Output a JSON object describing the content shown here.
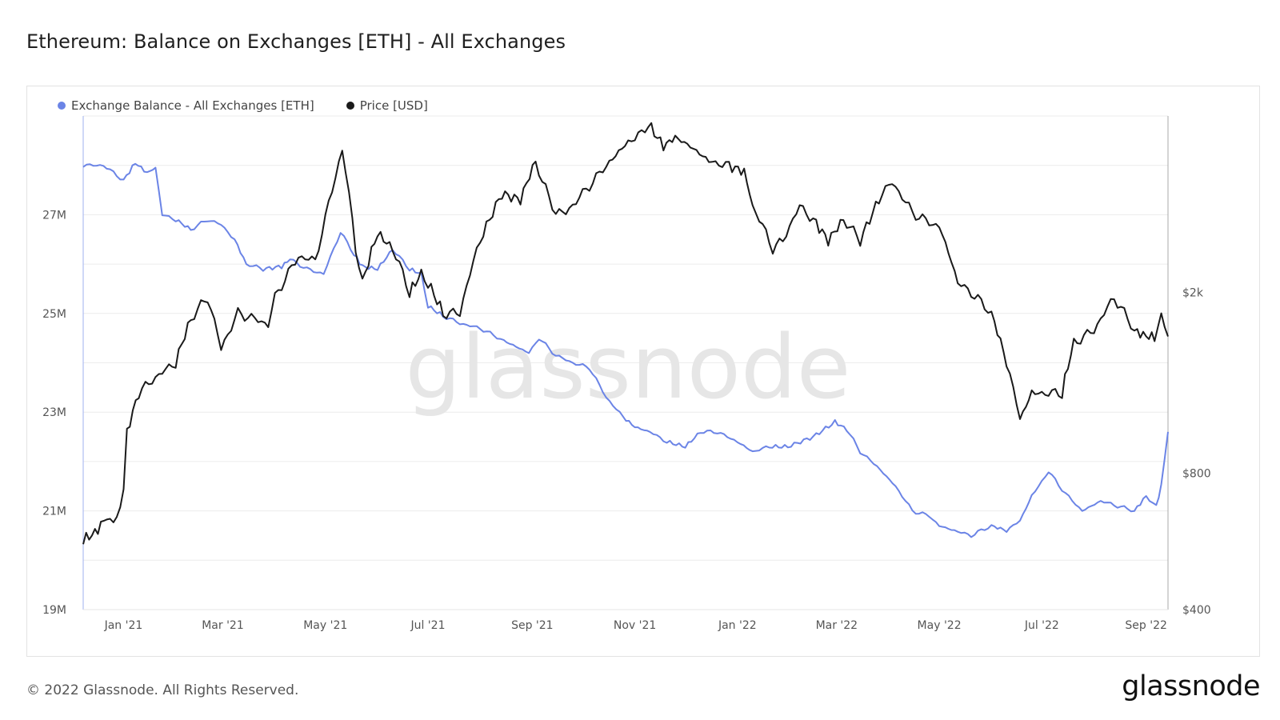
{
  "title": "Ethereum: Balance on Exchanges [ETH] - All Exchanges",
  "footer": "© 2022 Glassnode. All Rights Reserved.",
  "logo": "glassnode",
  "watermark": "glassnode",
  "colors": {
    "balance": "#6b84e6",
    "price": "#1a1a1a",
    "grid": "#ececec"
  },
  "chart_data": {
    "type": "line",
    "title": "Ethereum: Balance on Exchanges [ETH] - All Exchanges",
    "x_ticks": [
      "Jan '21",
      "Mar '21",
      "May '21",
      "Jul '21",
      "Sep '21",
      "Nov '21",
      "Jan '22",
      "Mar '22",
      "May '22",
      "Jul '22",
      "Sep '22"
    ],
    "x_range": [
      "2020-12-08",
      "2022-09-14"
    ],
    "y_left": {
      "ticks": [
        "19M",
        "21M",
        "23M",
        "25M",
        "27M"
      ],
      "tick_values": [
        19000000,
        21000000,
        23000000,
        25000000,
        27000000
      ],
      "range": [
        19000000,
        29000000
      ]
    },
    "y_right": {
      "ticks": [
        "$400",
        "$800",
        "$2k"
      ],
      "tick_values": [
        400,
        800,
        2000
      ],
      "range": [
        400,
        4900
      ],
      "scale": "log"
    },
    "grid": true,
    "legend_position": "top-left",
    "series": [
      {
        "name": "Exchange Balance - All Exchanges [ETH]",
        "axis": "left",
        "color": "#6b84e6",
        "x": [
          "2020-12-08",
          "2020-12-20",
          "2021-01-01",
          "2021-01-08",
          "2021-01-15",
          "2021-01-20",
          "2021-01-24",
          "2021-02-01",
          "2021-02-10",
          "2021-02-20",
          "2021-02-28",
          "2021-03-08",
          "2021-03-15",
          "2021-03-25",
          "2021-04-05",
          "2021-04-10",
          "2021-04-20",
          "2021-04-30",
          "2021-05-10",
          "2021-05-18",
          "2021-05-23",
          "2021-06-01",
          "2021-06-10",
          "2021-06-20",
          "2021-06-27",
          "2021-07-01",
          "2021-07-10",
          "2021-07-20",
          "2021-08-01",
          "2021-08-15",
          "2021-08-30",
          "2021-09-05",
          "2021-09-15",
          "2021-09-25",
          "2021-10-05",
          "2021-10-15",
          "2021-10-25",
          "2021-11-01",
          "2021-11-10",
          "2021-11-20",
          "2021-12-01",
          "2021-12-10",
          "2021-12-20",
          "2022-01-01",
          "2022-01-10",
          "2022-01-20",
          "2022-01-31",
          "2022-02-15",
          "2022-02-28",
          "2022-03-07",
          "2022-03-15",
          "2022-03-25",
          "2022-04-05",
          "2022-04-15",
          "2022-04-25",
          "2022-05-01",
          "2022-05-10",
          "2022-05-20",
          "2022-06-01",
          "2022-06-10",
          "2022-06-18",
          "2022-06-25",
          "2022-07-05",
          "2022-07-15",
          "2022-07-25",
          "2022-08-05",
          "2022-08-15",
          "2022-08-25",
          "2022-09-01",
          "2022-09-07",
          "2022-09-10",
          "2022-09-14"
        ],
        "values": [
          28000000,
          28000000,
          27700000,
          28050000,
          27850000,
          27950000,
          27000000,
          26900000,
          26700000,
          26900000,
          26800000,
          26500000,
          26000000,
          25900000,
          25950000,
          26100000,
          25900000,
          25800000,
          26650000,
          26200000,
          25950000,
          25900000,
          26300000,
          25900000,
          25800000,
          25150000,
          24950000,
          24800000,
          24700000,
          24450000,
          24200000,
          24500000,
          24150000,
          24000000,
          23900000,
          23300000,
          22900000,
          22700000,
          22600000,
          22400000,
          22300000,
          22600000,
          22600000,
          22400000,
          22200000,
          22300000,
          22300000,
          22500000,
          22800000,
          22650000,
          22200000,
          21900000,
          21500000,
          21000000,
          20900000,
          20700000,
          20600000,
          20500000,
          20700000,
          20600000,
          20800000,
          21300000,
          21800000,
          21350000,
          21000000,
          21200000,
          21100000,
          21000000,
          21300000,
          21100000,
          21500000,
          22600000
        ]
      },
      {
        "name": "Price [USD]",
        "axis": "right",
        "color": "#1a1a1a",
        "x": [
          "2020-12-08",
          "2020-12-15",
          "2020-12-22",
          "2020-12-26",
          "2021-01-01",
          "2021-01-03",
          "2021-01-10",
          "2021-01-20",
          "2021-02-01",
          "2021-02-10",
          "2021-02-20",
          "2021-02-28",
          "2021-03-10",
          "2021-03-20",
          "2021-03-28",
          "2021-04-01",
          "2021-04-15",
          "2021-04-25",
          "2021-05-01",
          "2021-05-11",
          "2021-05-19",
          "2021-05-23",
          "2021-06-01",
          "2021-06-10",
          "2021-06-20",
          "2021-06-27",
          "2021-07-01",
          "2021-07-10",
          "2021-07-20",
          "2021-08-01",
          "2021-08-14",
          "2021-08-25",
          "2021-09-03",
          "2021-09-07",
          "2021-09-15",
          "2021-09-21",
          "2021-10-01",
          "2021-10-15",
          "2021-10-28",
          "2021-11-01",
          "2021-11-09",
          "2021-11-18",
          "2021-11-25",
          "2021-12-04",
          "2021-12-15",
          "2021-12-27",
          "2022-01-05",
          "2022-01-10",
          "2022-01-22",
          "2022-01-28",
          "2022-02-07",
          "2022-02-15",
          "2022-02-24",
          "2022-03-05",
          "2022-03-15",
          "2022-03-28",
          "2022-04-03",
          "2022-04-15",
          "2022-04-25",
          "2022-05-01",
          "2022-05-12",
          "2022-05-20",
          "2022-06-01",
          "2022-06-10",
          "2022-06-18",
          "2022-06-25",
          "2022-07-05",
          "2022-07-13",
          "2022-07-20",
          "2022-08-01",
          "2022-08-13",
          "2022-08-25",
          "2022-09-01",
          "2022-09-06",
          "2022-09-10",
          "2022-09-14"
        ],
        "values": [
          570,
          590,
          640,
          610,
          730,
          980,
          1200,
          1300,
          1400,
          1750,
          1950,
          1500,
          1800,
          1750,
          1700,
          1950,
          2400,
          2350,
          2900,
          4100,
          2500,
          2100,
          2700,
          2500,
          2000,
          2200,
          2100,
          1800,
          1800,
          2600,
          3300,
          3200,
          3900,
          3500,
          3000,
          3000,
          3300,
          3800,
          4300,
          4350,
          4700,
          4200,
          4400,
          4200,
          3900,
          3800,
          3700,
          3100,
          2500,
          2600,
          3100,
          2900,
          2600,
          2900,
          2600,
          3300,
          3500,
          3000,
          2850,
          2800,
          2100,
          2000,
          1800,
          1400,
          1050,
          1200,
          1200,
          1200,
          1550,
          1650,
          1950,
          1650,
          1600,
          1600,
          1750,
          1600
        ]
      }
    ]
  }
}
